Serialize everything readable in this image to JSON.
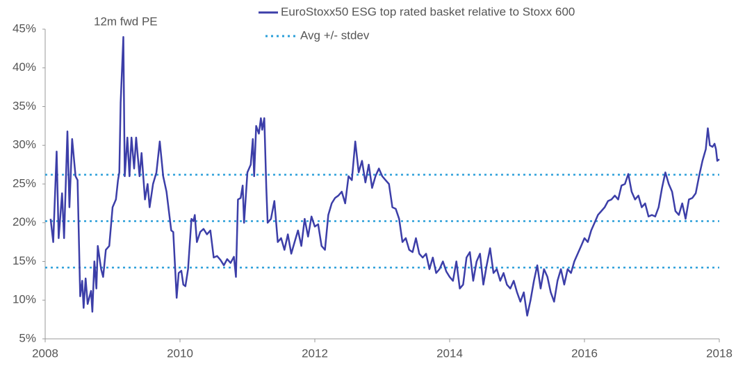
{
  "chart_data": {
    "type": "line",
    "annotation": "12m fwd PE",
    "xlim": [
      2008,
      2018
    ],
    "xticks": [
      2008,
      2010,
      2012,
      2014,
      2016,
      2018
    ],
    "ylim": [
      5,
      45
    ],
    "yticks": [
      {
        "value": 5,
        "label": "5%"
      },
      {
        "value": 10,
        "label": "10%"
      },
      {
        "value": 15,
        "label": "15%"
      },
      {
        "value": 20,
        "label": "20%"
      },
      {
        "value": 25,
        "label": "25%"
      },
      {
        "value": 30,
        "label": "30%"
      },
      {
        "value": 35,
        "label": "35%"
      },
      {
        "value": 40,
        "label": "40%"
      },
      {
        "value": 45,
        "label": "45%"
      }
    ],
    "x": [
      2008.08,
      2008.12,
      2008.17,
      2008.2,
      2008.25,
      2008.28,
      2008.33,
      2008.36,
      2008.4,
      2008.45,
      2008.48,
      2008.52,
      2008.55,
      2008.57,
      2008.6,
      2008.63,
      2008.68,
      2008.7,
      2008.73,
      2008.76,
      2008.78,
      2008.83,
      2008.86,
      2008.9,
      2008.95,
      2009.0,
      2009.05,
      2009.08,
      2009.1,
      2009.12,
      2009.16,
      2009.18,
      2009.22,
      2009.25,
      2009.28,
      2009.32,
      2009.35,
      2009.4,
      2009.43,
      2009.48,
      2009.52,
      2009.55,
      2009.6,
      2009.65,
      2009.7,
      2009.75,
      2009.8,
      2009.87,
      2009.9,
      2009.95,
      2009.98,
      2010.02,
      2010.05,
      2010.08,
      2010.12,
      2010.17,
      2010.2,
      2010.22,
      2010.25,
      2010.3,
      2010.35,
      2010.4,
      2010.45,
      2010.5,
      2010.55,
      2010.6,
      2010.65,
      2010.7,
      2010.75,
      2010.8,
      2010.83,
      2010.86,
      2010.9,
      2010.93,
      2010.95,
      2011.0,
      2011.05,
      2011.08,
      2011.1,
      2011.13,
      2011.17,
      2011.2,
      2011.22,
      2011.25,
      2011.28,
      2011.3,
      2011.35,
      2011.4,
      2011.45,
      2011.5,
      2011.55,
      2011.6,
      2011.65,
      2011.7,
      2011.75,
      2011.8,
      2011.85,
      2011.9,
      2011.95,
      2012.0,
      2012.05,
      2012.1,
      2012.15,
      2012.2,
      2012.25,
      2012.3,
      2012.35,
      2012.4,
      2012.45,
      2012.5,
      2012.55,
      2012.6,
      2012.65,
      2012.7,
      2012.75,
      2012.8,
      2012.85,
      2012.9,
      2012.95,
      2013.0,
      2013.05,
      2013.1,
      2013.15,
      2013.2,
      2013.25,
      2013.3,
      2013.35,
      2013.4,
      2013.45,
      2013.5,
      2013.55,
      2013.6,
      2013.65,
      2013.7,
      2013.75,
      2013.8,
      2013.85,
      2013.9,
      2013.95,
      2014.0,
      2014.05,
      2014.1,
      2014.15,
      2014.2,
      2014.25,
      2014.3,
      2014.35,
      2014.4,
      2014.45,
      2014.5,
      2014.55,
      2014.6,
      2014.65,
      2014.7,
      2014.75,
      2014.8,
      2014.85,
      2014.9,
      2014.95,
      2015.0,
      2015.05,
      2015.1,
      2015.15,
      2015.2,
      2015.25,
      2015.3,
      2015.35,
      2015.4,
      2015.45,
      2015.5,
      2015.55,
      2015.6,
      2015.65,
      2015.7,
      2015.75,
      2015.8,
      2015.85,
      2015.9,
      2015.95,
      2016.0,
      2016.05,
      2016.1,
      2016.15,
      2016.2,
      2016.25,
      2016.3,
      2016.35,
      2016.4,
      2016.45,
      2016.5,
      2016.55,
      2016.6,
      2016.65,
      2016.7,
      2016.75,
      2016.8,
      2016.85,
      2016.9,
      2016.95,
      2017.0,
      2017.05,
      2017.1,
      2017.15,
      2017.2,
      2017.25,
      2017.3,
      2017.35,
      2017.4,
      2017.45,
      2017.5,
      2017.55,
      2017.6,
      2017.65,
      2017.7,
      2017.75,
      2017.8,
      2017.83,
      2017.86,
      2017.9,
      2017.93,
      2017.95,
      2017.97,
      2018.0
    ],
    "series": [
      {
        "name": "EuroStoxx50 ESG top rated basket relative to Stoxx 600",
        "color": "#3c3ea8",
        "values": [
          20.5,
          17.5,
          29.2,
          18,
          23.8,
          18,
          31.8,
          22,
          30.8,
          26,
          25.5,
          10.5,
          12.5,
          9,
          12.8,
          9.5,
          11.2,
          8.5,
          15,
          11.5,
          17,
          14,
          13,
          16.5,
          17,
          22,
          23,
          25.5,
          26.5,
          35.5,
          44,
          26,
          31,
          26,
          31,
          27,
          31,
          26,
          29,
          23,
          25,
          22,
          25,
          26.5,
          30.5,
          26,
          24,
          19,
          18.8,
          10.3,
          13.5,
          13.8,
          12,
          11.8,
          14,
          20.5,
          20.2,
          21,
          17.5,
          18.8,
          19.2,
          18.5,
          19,
          15.5,
          15.7,
          15.2,
          14.5,
          15.3,
          14.8,
          15.6,
          13,
          23,
          23.2,
          24.8,
          20,
          26.5,
          27.5,
          30.8,
          26,
          32.5,
          31.5,
          33.5,
          32,
          33.5,
          24.5,
          20,
          20.5,
          22.8,
          17.5,
          18,
          16.5,
          18.5,
          16,
          17.5,
          19,
          17,
          20.5,
          18.2,
          20.8,
          19.5,
          19.8,
          17,
          16.5,
          21,
          22.5,
          23.2,
          23.5,
          24,
          22.5,
          26,
          25.5,
          30.5,
          26.5,
          28,
          25.2,
          27.5,
          24.5,
          26,
          27,
          26,
          25.5,
          25,
          22,
          21.8,
          20.5,
          17.5,
          18,
          16.5,
          16.2,
          18,
          16,
          15.5,
          16,
          14,
          15.5,
          13.5,
          14,
          15,
          13.7,
          13,
          12.5,
          15,
          11.5,
          12,
          15.5,
          16.2,
          12.5,
          15,
          16,
          12,
          14.5,
          16.7,
          13.5,
          14,
          12.5,
          13.5,
          12,
          11.5,
          12.5,
          11,
          9.8,
          11,
          8,
          10,
          12.5,
          14.5,
          11.5,
          14,
          13,
          11,
          9.8,
          12.5,
          14,
          12,
          14,
          13.5,
          15,
          16,
          17,
          18,
          17.5,
          19,
          20,
          21,
          21.5,
          22,
          22.8,
          23,
          23.5,
          23,
          24.8,
          25,
          26.3,
          24,
          23,
          23.5,
          22,
          22.5,
          20.8,
          21,
          20.8,
          22,
          24.5,
          26.5,
          25,
          24,
          21.5,
          21,
          22.5,
          20.5,
          23,
          23.2,
          23.8,
          26,
          28,
          29.5,
          32.2,
          30,
          29.8,
          30.2,
          29.5,
          28,
          28.2
        ]
      }
    ],
    "reference_lines": {
      "name": "Avg +/- stdev",
      "color": "#2b9fd9",
      "values": [
        14.2,
        20.2,
        26.2
      ]
    }
  }
}
